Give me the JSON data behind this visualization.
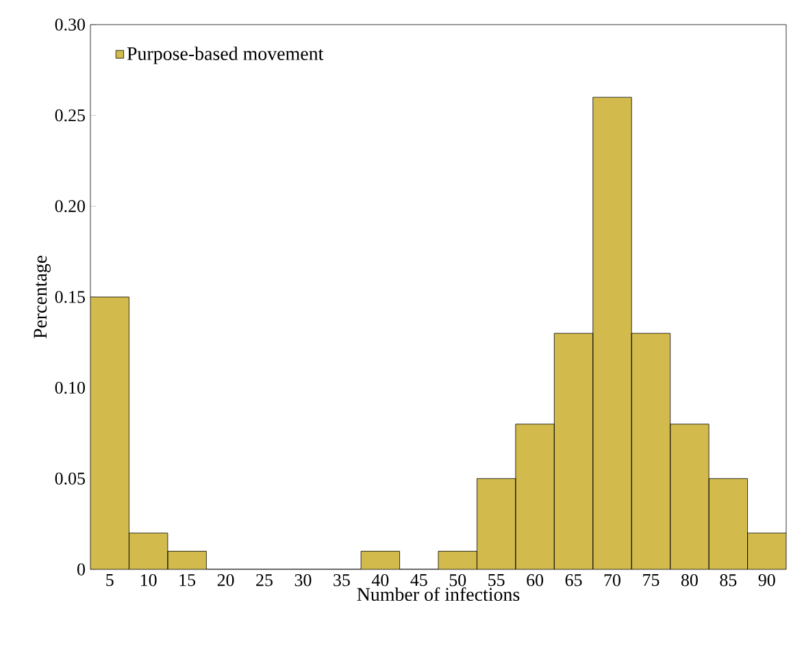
{
  "chart_data": {
    "type": "bar",
    "xlabel": "Number of infections",
    "ylabel": "Percentage",
    "categories": [
      "5",
      "10",
      "15",
      "20",
      "25",
      "30",
      "35",
      "40",
      "45",
      "50",
      "55",
      "60",
      "65",
      "70",
      "75",
      "80",
      "85",
      "90"
    ],
    "series": [
      {
        "name": "Purpose-based movement",
        "color": "#d2bb4c",
        "values": [
          0.15,
          0.02,
          0.01,
          0,
          0,
          0,
          0,
          0.01,
          0,
          0.01,
          0.05,
          0.08,
          0.13,
          0.26,
          0.13,
          0.08,
          0.05,
          0.02
        ]
      }
    ],
    "ylim": [
      0,
      0.3
    ],
    "yticks": [
      {
        "value": 0,
        "label": "0"
      },
      {
        "value": 0.05,
        "label": "0.05"
      },
      {
        "value": 0.1,
        "label": "0.10"
      },
      {
        "value": 0.15,
        "label": "0.15"
      },
      {
        "value": 0.2,
        "label": "0.20"
      },
      {
        "value": 0.25,
        "label": "0.25"
      },
      {
        "value": 0.3,
        "label": "0.30"
      }
    ],
    "legend": "top left",
    "grid": false
  }
}
